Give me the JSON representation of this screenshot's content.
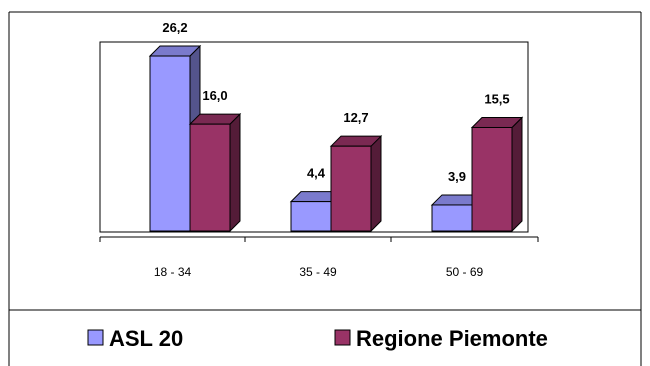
{
  "chart_data": {
    "type": "bar",
    "title": "",
    "xlabel": "",
    "ylabel": "",
    "categories": [
      "18 - 34",
      "35 - 49",
      "50 - 69"
    ],
    "value_labels": [
      [
        "26,2",
        "4,4",
        "3,9"
      ],
      [
        "16,0",
        "12,7",
        "15,5"
      ]
    ],
    "series": [
      {
        "name": "ASL 20",
        "values": [
          26.2,
          4.4,
          3.9
        ],
        "color": "#9999ff"
      },
      {
        "name": "Regione Piemonte",
        "values": [
          16.0,
          12.7,
          15.5
        ],
        "color": "#993366"
      }
    ],
    "ylim": [
      0,
      28
    ],
    "grid": false,
    "bar_style": "3d",
    "legend_position": "bottom"
  }
}
